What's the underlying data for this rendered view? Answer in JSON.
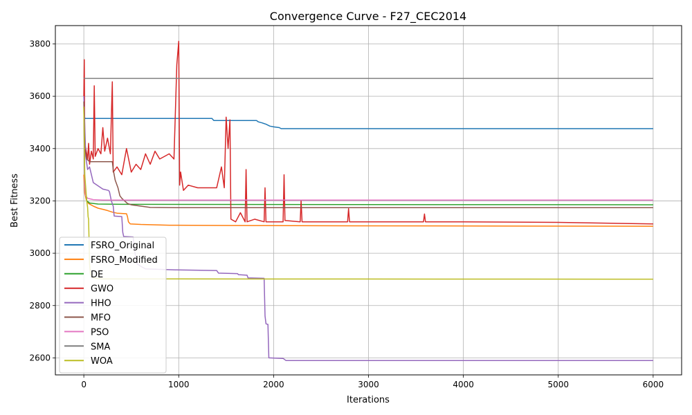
{
  "chart_data": {
    "type": "line",
    "title": "Convergence Curve - F27_CEC2014",
    "xlabel": "Iterations",
    "ylabel": "Best Fitness",
    "xlim": [
      -300,
      6300
    ],
    "ylim": [
      2535,
      3870
    ],
    "xticks": [
      0,
      1000,
      2000,
      3000,
      4000,
      5000,
      6000
    ],
    "yticks": [
      2600,
      2800,
      3000,
      3200,
      3400,
      3600,
      3800
    ],
    "grid": true,
    "legend_position": "lower-left",
    "series": [
      {
        "name": "FSRO_Original",
        "color": "#1f77b4",
        "points": [
          [
            0,
            3560
          ],
          [
            5,
            3520
          ],
          [
            15,
            3515
          ],
          [
            1350,
            3515
          ],
          [
            1370,
            3507
          ],
          [
            1820,
            3507
          ],
          [
            1840,
            3502
          ],
          [
            1880,
            3498
          ],
          [
            1920,
            3493
          ],
          [
            1960,
            3486
          ],
          [
            2000,
            3483
          ],
          [
            2060,
            3480
          ],
          [
            2080,
            3476
          ],
          [
            6000,
            3476
          ]
        ]
      },
      {
        "name": "FSRO_Modified",
        "color": "#ff7f0e",
        "points": [
          [
            0,
            3300
          ],
          [
            10,
            3230
          ],
          [
            25,
            3205
          ],
          [
            50,
            3190
          ],
          [
            100,
            3180
          ],
          [
            150,
            3172
          ],
          [
            200,
            3168
          ],
          [
            250,
            3163
          ],
          [
            300,
            3157
          ],
          [
            350,
            3153
          ],
          [
            400,
            3152
          ],
          [
            450,
            3151
          ],
          [
            460,
            3140
          ],
          [
            470,
            3120
          ],
          [
            490,
            3112
          ],
          [
            600,
            3110
          ],
          [
            900,
            3107
          ],
          [
            1500,
            3106
          ],
          [
            2500,
            3105
          ],
          [
            6000,
            3103
          ]
        ]
      },
      {
        "name": "DE",
        "color": "#2ca02c",
        "points": [
          [
            0,
            3560
          ],
          [
            10,
            3260
          ],
          [
            30,
            3200
          ],
          [
            60,
            3192
          ],
          [
            150,
            3188
          ],
          [
            400,
            3187
          ],
          [
            6000,
            3185
          ]
        ]
      },
      {
        "name": "GWO",
        "color": "#d62728",
        "points": [
          [
            0,
            3600
          ],
          [
            5,
            3740
          ],
          [
            10,
            3420
          ],
          [
            20,
            3400
          ],
          [
            30,
            3380
          ],
          [
            40,
            3360
          ],
          [
            50,
            3420
          ],
          [
            60,
            3340
          ],
          [
            80,
            3390
          ],
          [
            100,
            3360
          ],
          [
            110,
            3640
          ],
          [
            120,
            3370
          ],
          [
            150,
            3400
          ],
          [
            180,
            3380
          ],
          [
            200,
            3480
          ],
          [
            220,
            3390
          ],
          [
            250,
            3440
          ],
          [
            280,
            3380
          ],
          [
            300,
            3655
          ],
          [
            310,
            3310
          ],
          [
            350,
            3330
          ],
          [
            400,
            3300
          ],
          [
            450,
            3400
          ],
          [
            500,
            3310
          ],
          [
            550,
            3340
          ],
          [
            600,
            3320
          ],
          [
            650,
            3380
          ],
          [
            700,
            3340
          ],
          [
            750,
            3390
          ],
          [
            800,
            3360
          ],
          [
            850,
            3370
          ],
          [
            900,
            3380
          ],
          [
            950,
            3360
          ],
          [
            980,
            3720
          ],
          [
            1000,
            3810
          ],
          [
            1010,
            3260
          ],
          [
            1020,
            3310
          ],
          [
            1050,
            3240
          ],
          [
            1100,
            3260
          ],
          [
            1200,
            3250
          ],
          [
            1300,
            3250
          ],
          [
            1400,
            3250
          ],
          [
            1450,
            3330
          ],
          [
            1480,
            3250
          ],
          [
            1500,
            3520
          ],
          [
            1520,
            3400
          ],
          [
            1540,
            3510
          ],
          [
            1550,
            3130
          ],
          [
            1600,
            3120
          ],
          [
            1650,
            3155
          ],
          [
            1700,
            3120
          ],
          [
            1710,
            3320
          ],
          [
            1720,
            3120
          ],
          [
            1800,
            3130
          ],
          [
            1900,
            3120
          ],
          [
            1910,
            3250
          ],
          [
            1920,
            3120
          ],
          [
            2100,
            3120
          ],
          [
            2110,
            3300
          ],
          [
            2120,
            3125
          ],
          [
            2280,
            3120
          ],
          [
            2290,
            3200
          ],
          [
            2300,
            3120
          ],
          [
            2780,
            3120
          ],
          [
            2790,
            3170
          ],
          [
            2800,
            3120
          ],
          [
            3580,
            3120
          ],
          [
            3590,
            3150
          ],
          [
            3600,
            3120
          ],
          [
            4000,
            3120
          ],
          [
            5000,
            3118
          ],
          [
            6000,
            3112
          ]
        ]
      },
      {
        "name": "HHO",
        "color": "#9467bd",
        "points": [
          [
            0,
            3600
          ],
          [
            20,
            3370
          ],
          [
            40,
            3320
          ],
          [
            60,
            3330
          ],
          [
            80,
            3300
          ],
          [
            100,
            3270
          ],
          [
            200,
            3245
          ],
          [
            260,
            3240
          ],
          [
            270,
            3235
          ],
          [
            290,
            3200
          ],
          [
            310,
            3180
          ],
          [
            320,
            3142
          ],
          [
            400,
            3140
          ],
          [
            410,
            3080
          ],
          [
            420,
            3064
          ],
          [
            520,
            3062
          ],
          [
            530,
            3020
          ],
          [
            560,
            2960
          ],
          [
            600,
            2950
          ],
          [
            650,
            2940
          ],
          [
            1000,
            2936
          ],
          [
            1400,
            2934
          ],
          [
            1420,
            2924
          ],
          [
            1620,
            2922
          ],
          [
            1630,
            2918
          ],
          [
            1720,
            2916
          ],
          [
            1730,
            2906
          ],
          [
            1900,
            2904
          ],
          [
            1910,
            2760
          ],
          [
            1920,
            2730
          ],
          [
            1940,
            2728
          ],
          [
            1950,
            2600
          ],
          [
            2100,
            2598
          ],
          [
            2130,
            2590
          ],
          [
            6000,
            2590
          ]
        ]
      },
      {
        "name": "MFO",
        "color": "#8c564b",
        "points": [
          [
            0,
            3580
          ],
          [
            10,
            3400
          ],
          [
            30,
            3360
          ],
          [
            60,
            3350
          ],
          [
            300,
            3350
          ],
          [
            310,
            3320
          ],
          [
            330,
            3280
          ],
          [
            360,
            3250
          ],
          [
            380,
            3220
          ],
          [
            400,
            3210
          ],
          [
            430,
            3200
          ],
          [
            460,
            3190
          ],
          [
            500,
            3185
          ],
          [
            600,
            3180
          ],
          [
            700,
            3175
          ],
          [
            1000,
            3174
          ],
          [
            6000,
            3174
          ]
        ]
      },
      {
        "name": "PSO",
        "color": "#e377c2",
        "points": [
          [
            0,
            3560
          ],
          [
            10,
            3260
          ],
          [
            20,
            3220
          ],
          [
            40,
            3210
          ],
          [
            100,
            3205
          ],
          [
            200,
            3203
          ],
          [
            6000,
            3203
          ]
        ]
      },
      {
        "name": "SMA",
        "color": "#7f7f7f",
        "points": [
          [
            0,
            3668
          ],
          [
            6000,
            3668
          ]
        ]
      },
      {
        "name": "WOA",
        "color": "#bcbd22",
        "points": [
          [
            0,
            3560
          ],
          [
            10,
            3300
          ],
          [
            20,
            3250
          ],
          [
            30,
            3200
          ],
          [
            40,
            3175
          ],
          [
            45,
            3140
          ],
          [
            50,
            3130
          ],
          [
            55,
            3050
          ],
          [
            60,
            2960
          ],
          [
            70,
            2920
          ],
          [
            100,
            2905
          ],
          [
            200,
            2902
          ],
          [
            6000,
            2901
          ]
        ]
      }
    ]
  }
}
